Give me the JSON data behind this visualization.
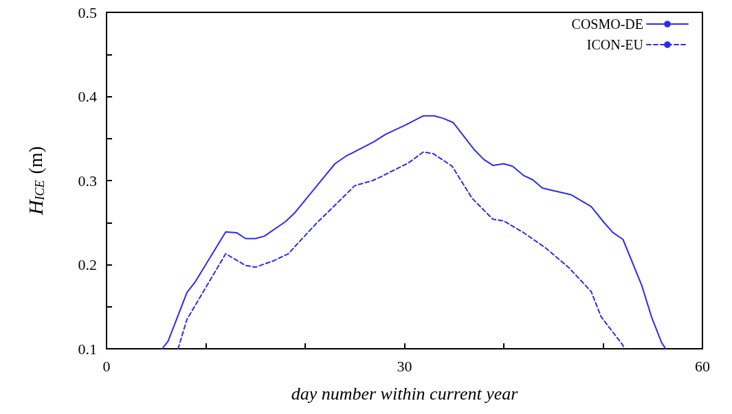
{
  "chart_data": {
    "type": "line",
    "xlabel": "day number within current year",
    "ylabel": "H$_{ICE}$ (m)",
    "xlim": [
      0,
      60
    ],
    "xticks": [
      0,
      {
        "value": 10,
        "label": null
      },
      {
        "value": 20,
        "label": null
      },
      30,
      {
        "value": 40,
        "label": null
      },
      {
        "value": 50,
        "label": null
      },
      60
    ],
    "ylim": [
      0.1,
      0.5
    ],
    "yticks": [
      0.1,
      {
        "value": 0.15,
        "label": null
      },
      0.2,
      {
        "value": 0.25,
        "label": null
      },
      0.3,
      {
        "value": 0.35,
        "label": null
      },
      0.4,
      {
        "value": 0.45,
        "label": null
      },
      0.5
    ],
    "grid": false,
    "legend": "top right",
    "marker": "none",
    "series": [
      {
        "name": "COSMO-DE",
        "color": "#2b2bf0",
        "line_style": "solid",
        "x": [
          5.6,
          6.2,
          8.1,
          8.9,
          12.0,
          13.1,
          14.0,
          15.0,
          15.9,
          18.0,
          18.9,
          23.0,
          24.1,
          26.9,
          28.1,
          30.1,
          31.9,
          33.0,
          33.9,
          34.9,
          37.0,
          38.0,
          38.9,
          40.0,
          40.9,
          42.0,
          42.9,
          43.9,
          46.8,
          48.8,
          50.1,
          51.0,
          52.0,
          53.9,
          54.9,
          55.9,
          56.3
        ],
        "values": [
          0.1,
          0.109,
          0.167,
          0.179,
          0.239,
          0.238,
          0.231,
          0.231,
          0.234,
          0.251,
          0.261,
          0.32,
          0.329,
          0.346,
          0.355,
          0.366,
          0.377,
          0.377,
          0.374,
          0.369,
          0.337,
          0.325,
          0.318,
          0.32,
          0.317,
          0.306,
          0.301,
          0.291,
          0.283,
          0.269,
          0.25,
          0.238,
          0.23,
          0.175,
          0.137,
          0.107,
          0.1
        ]
      },
      {
        "name": "ICON-EU",
        "color": "#2b2bf0",
        "line_style": "dashed",
        "x": [
          7.2,
          8.1,
          12.0,
          14.0,
          15.0,
          16.9,
          18.3,
          21.2,
          23.2,
          25.0,
          26.8,
          27.7,
          30.4,
          31.9,
          32.9,
          34.8,
          36.8,
          38.9,
          40.0,
          42.0,
          44.2,
          46.5,
          48.8,
          49.8,
          52.0,
          52.1
        ],
        "values": [
          0.1,
          0.135,
          0.213,
          0.199,
          0.197,
          0.205,
          0.213,
          0.25,
          0.273,
          0.294,
          0.3,
          0.305,
          0.321,
          0.334,
          0.332,
          0.317,
          0.279,
          0.254,
          0.252,
          0.238,
          0.22,
          0.197,
          0.168,
          0.138,
          0.104,
          0.1
        ]
      }
    ]
  }
}
